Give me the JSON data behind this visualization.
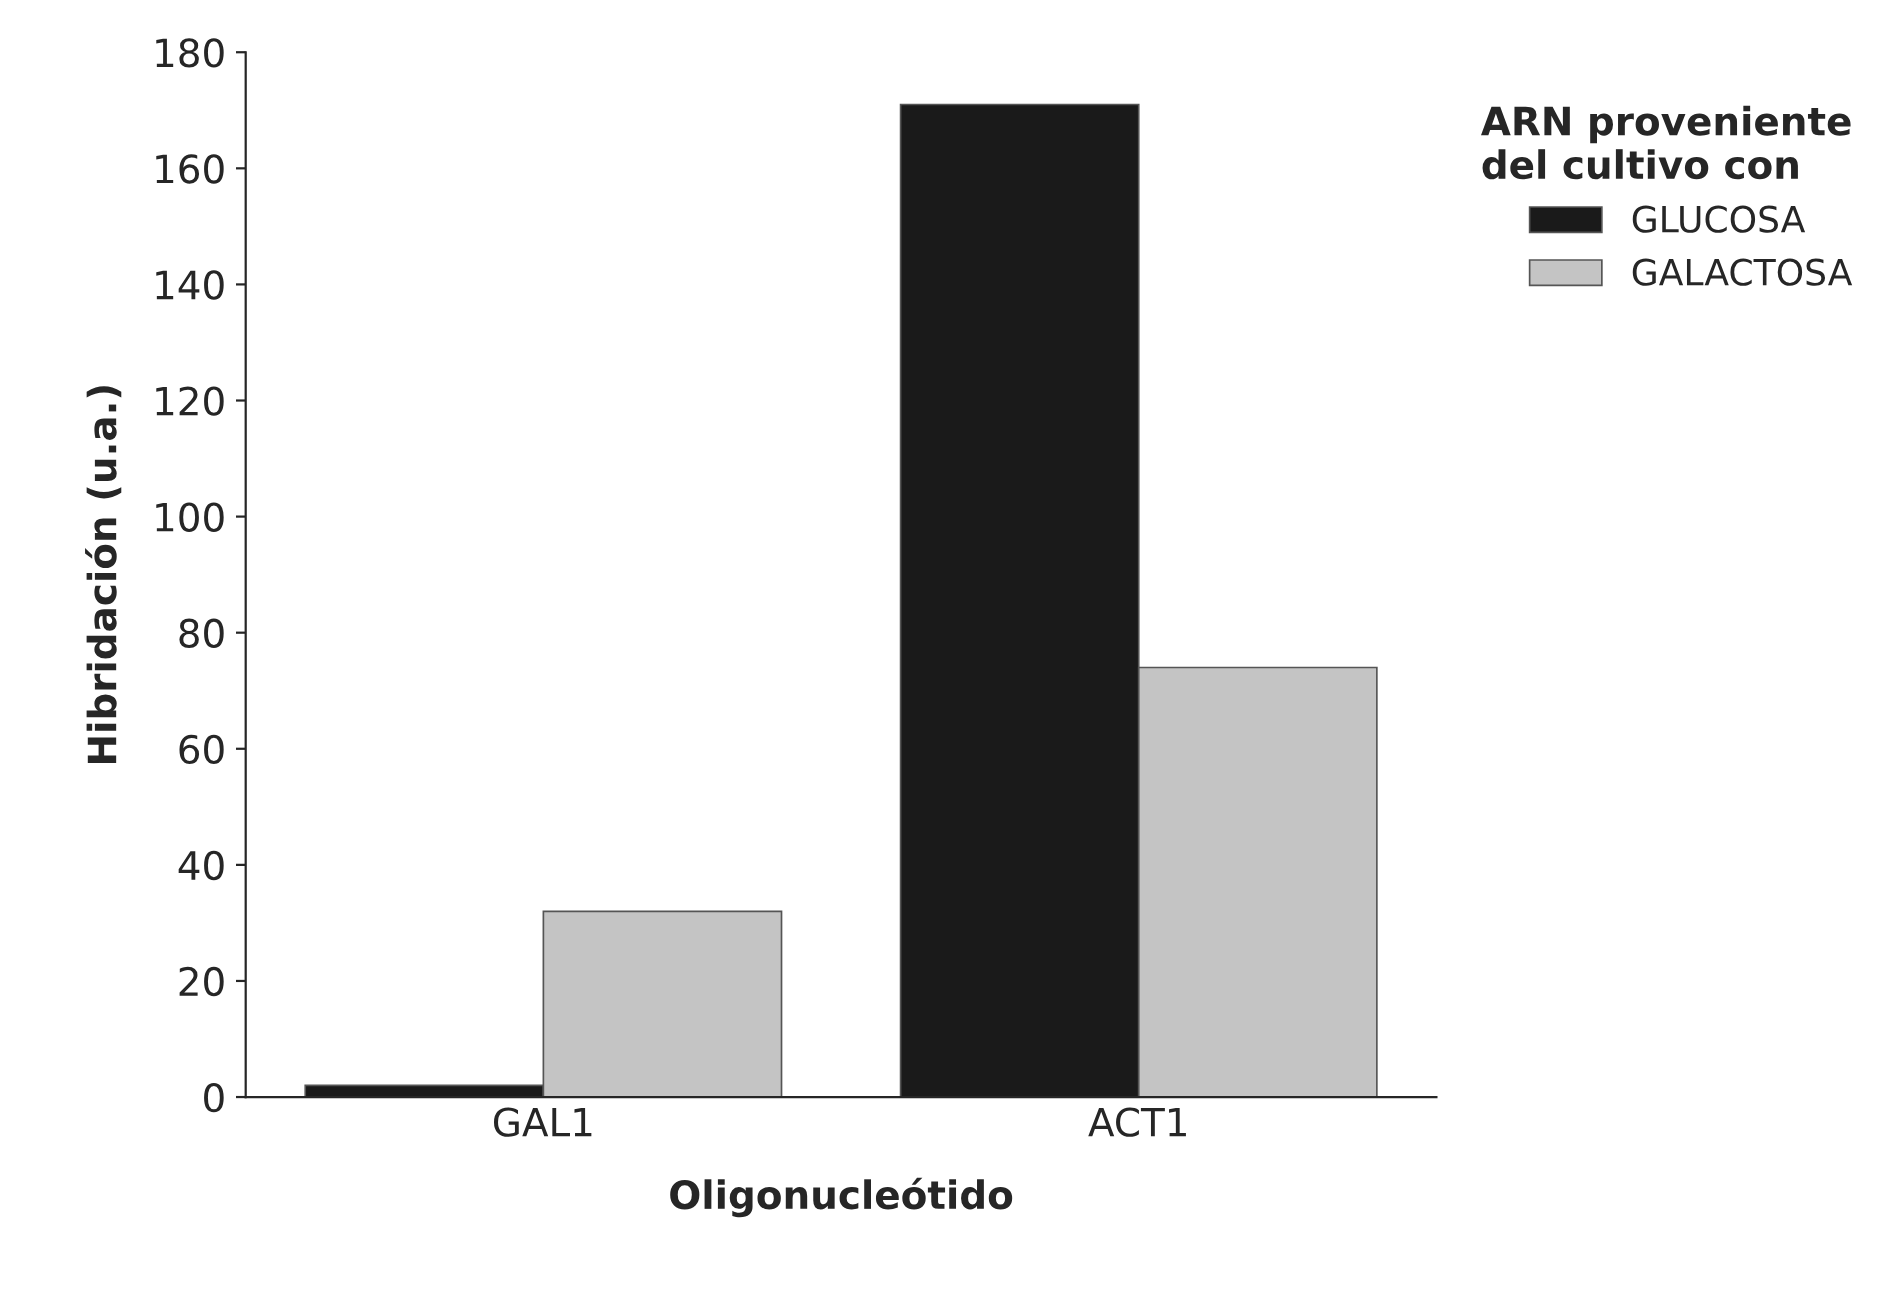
{
  "chart_data": {
    "type": "bar",
    "xlabel": "Oligonucleótido",
    "ylabel": "Hibridación (u.a.)",
    "legend_title": "ARN proveniente\ndel cultivo con",
    "categories": [
      "GAL1",
      "ACT1"
    ],
    "series": [
      {
        "name": "GLUCOSA",
        "color": "#1a1a1a",
        "values": [
          2,
          171
        ]
      },
      {
        "name": "GALACTOSA",
        "color": "#c4c4c4",
        "values": [
          32,
          74
        ]
      }
    ],
    "ylim": [
      0,
      180
    ],
    "yticks": [
      0,
      20,
      40,
      60,
      80,
      100,
      120,
      140,
      160,
      180
    ],
    "grid": false,
    "legend": "right"
  }
}
